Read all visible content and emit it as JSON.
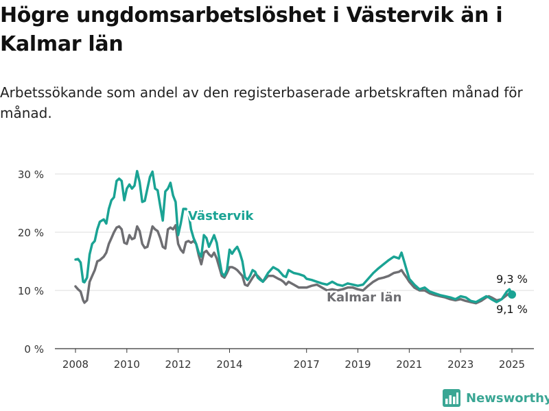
{
  "title": "Högre ungdomsarbetslöshet i Västervik än i Kalmar län",
  "subtitle": "Arbetssökande som andel av den registerbaserade arbetskraften månad för månad.",
  "brand": {
    "name": "Newsworthy",
    "color": "#3aa694"
  },
  "colors": {
    "vastervik": "#1aa394",
    "kalmar": "#6e6e72",
    "grid": "#dcdcdc",
    "axis": "#333333"
  },
  "chart_data": {
    "type": "line",
    "title": "Högre ungdomsarbetslöshet i Västervik än i Kalmar län",
    "xlabel": "",
    "ylabel": "",
    "ylim": [
      0,
      30
    ],
    "xlim": [
      2008.0,
      2025.5
    ],
    "grid": "horizontal",
    "y_ticks": [
      0,
      10,
      20,
      30
    ],
    "y_tick_labels": [
      "0 %",
      "10 %",
      "20 %",
      "30 %"
    ],
    "x_ticks": [
      2008,
      2010,
      2012,
      2014,
      2017,
      2019,
      2021,
      2023,
      2025
    ],
    "x_tick_labels": [
      "2008",
      "2010",
      "2012",
      "2014",
      "2017",
      "2019",
      "2021",
      "2023",
      "2025"
    ],
    "series": [
      {
        "name": "Västervik",
        "color": "#1aa394",
        "label": "Västervik",
        "end_label": "9,3 %",
        "end_value": 9.3,
        "x": [
          2008.0,
          2008.1,
          2008.2,
          2008.3,
          2008.35,
          2008.45,
          2008.55,
          2008.65,
          2008.75,
          2008.85,
          2008.95,
          2009.1,
          2009.2,
          2009.3,
          2009.4,
          2009.5,
          2009.6,
          2009.7,
          2009.8,
          2009.9,
          2010.0,
          2010.1,
          2010.2,
          2010.3,
          2010.4,
          2010.5,
          2010.6,
          2010.7,
          2010.8,
          2010.9,
          2011.0,
          2011.1,
          2011.2,
          2011.3,
          2011.4,
          2011.5,
          2011.6,
          2011.7,
          2011.8,
          2011.9,
          2012.0,
          2012.1,
          2012.2,
          2012.3,
          2012.4,
          2012.5,
          2012.6,
          2012.7,
          2012.8,
          2012.9,
          2013.0,
          2013.1,
          2013.2,
          2013.3,
          2013.4,
          2013.5,
          2013.6,
          2013.7,
          2013.8,
          2013.9,
          2014.0,
          2014.1,
          2014.2,
          2014.3,
          2014.4,
          2014.5,
          2014.6,
          2014.7,
          2014.8,
          2014.9,
          2015.0,
          2015.1,
          2015.2,
          2015.3,
          2015.5,
          2015.7,
          2015.9,
          2016.0,
          2016.1,
          2016.2,
          2016.3,
          2016.5,
          2016.7,
          2016.9,
          2017.0,
          2017.2,
          2017.4,
          2017.6,
          2017.8,
          2018.0,
          2018.2,
          2018.4,
          2018.6,
          2018.8,
          2019.0,
          2019.2,
          2019.4,
          2019.6,
          2019.8,
          2020.0,
          2020.2,
          2020.4,
          2020.6,
          2020.7,
          2020.8,
          2020.9,
          2021.0,
          2021.2,
          2021.4,
          2021.6,
          2021.8,
          2022.0,
          2022.2,
          2022.4,
          2022.6,
          2022.8,
          2023.0,
          2023.2,
          2023.4,
          2023.6,
          2023.8,
          2024.0,
          2024.1,
          2024.2,
          2024.4,
          2024.6,
          2024.8,
          2024.9,
          2025.0
        ],
        "values": [
          15.3,
          15.4,
          14.8,
          11.5,
          11.4,
          12.2,
          16.2,
          18.0,
          18.5,
          20.5,
          21.8,
          22.2,
          21.5,
          24.0,
          25.5,
          26.0,
          28.8,
          29.2,
          28.8,
          25.5,
          27.5,
          28.2,
          27.5,
          28.0,
          30.5,
          28.6,
          25.2,
          25.4,
          27.5,
          29.5,
          30.4,
          27.5,
          27.2,
          24.5,
          22.0,
          27.0,
          27.5,
          28.5,
          26.3,
          25.2,
          19.5,
          21.5,
          24.0,
          24.0,
          23.5,
          20.5,
          19.0,
          18.0,
          16.5,
          15.8,
          19.5,
          19.0,
          17.5,
          18.5,
          19.5,
          18.2,
          15.5,
          13.0,
          12.5,
          13.5,
          17.0,
          16.3,
          17.0,
          17.5,
          16.5,
          15.0,
          12.3,
          11.8,
          12.5,
          13.5,
          13.2,
          12.2,
          11.8,
          11.5,
          13.0,
          14.0,
          13.5,
          13.0,
          12.5,
          12.3,
          13.5,
          13.0,
          12.8,
          12.5,
          12.0,
          11.8,
          11.5,
          11.2,
          11.0,
          11.5,
          11.0,
          10.8,
          11.2,
          11.0,
          10.8,
          11.0,
          12.0,
          13.0,
          13.8,
          14.5,
          15.2,
          15.8,
          15.5,
          16.5,
          15.0,
          13.5,
          12.0,
          11.0,
          10.2,
          10.5,
          9.8,
          9.5,
          9.2,
          9.0,
          8.8,
          8.5,
          9.0,
          8.8,
          8.2,
          8.0,
          8.5,
          9.0,
          8.8,
          8.5,
          8.0,
          8.5,
          9.8,
          10.2,
          9.3
        ]
      },
      {
        "name": "Kalmar län",
        "color": "#6e6e72",
        "label": "Kalmar län",
        "end_label": "9,1 %",
        "end_value": 9.1,
        "x": [
          2008.0,
          2008.1,
          2008.2,
          2008.3,
          2008.35,
          2008.45,
          2008.55,
          2008.65,
          2008.75,
          2008.85,
          2008.95,
          2009.1,
          2009.2,
          2009.3,
          2009.4,
          2009.5,
          2009.6,
          2009.7,
          2009.8,
          2009.9,
          2010.0,
          2010.1,
          2010.2,
          2010.3,
          2010.4,
          2010.5,
          2010.6,
          2010.7,
          2010.8,
          2010.9,
          2011.0,
          2011.1,
          2011.2,
          2011.3,
          2011.4,
          2011.5,
          2011.6,
          2011.7,
          2011.8,
          2011.9,
          2012.0,
          2012.1,
          2012.2,
          2012.3,
          2012.4,
          2012.5,
          2012.6,
          2012.7,
          2012.8,
          2012.9,
          2013.0,
          2013.1,
          2013.2,
          2013.3,
          2013.4,
          2013.5,
          2013.6,
          2013.7,
          2013.8,
          2013.9,
          2014.0,
          2014.1,
          2014.2,
          2014.3,
          2014.4,
          2014.5,
          2014.6,
          2014.7,
          2014.8,
          2014.9,
          2015.0,
          2015.1,
          2015.2,
          2015.3,
          2015.5,
          2015.7,
          2015.9,
          2016.0,
          2016.1,
          2016.2,
          2016.3,
          2016.5,
          2016.7,
          2016.9,
          2017.0,
          2017.2,
          2017.4,
          2017.6,
          2017.8,
          2018.0,
          2018.2,
          2018.4,
          2018.6,
          2018.8,
          2019.0,
          2019.2,
          2019.4,
          2019.6,
          2019.8,
          2020.0,
          2020.2,
          2020.4,
          2020.6,
          2020.7,
          2020.8,
          2020.9,
          2021.0,
          2021.2,
          2021.4,
          2021.6,
          2021.8,
          2022.0,
          2022.2,
          2022.4,
          2022.6,
          2022.8,
          2023.0,
          2023.2,
          2023.4,
          2023.6,
          2023.8,
          2024.0,
          2024.1,
          2024.2,
          2024.4,
          2024.6,
          2024.8,
          2024.9,
          2025.0
        ],
        "values": [
          10.7,
          10.2,
          9.8,
          8.3,
          7.9,
          8.3,
          11.5,
          12.5,
          13.5,
          15.0,
          15.2,
          15.8,
          16.5,
          18.0,
          19.0,
          20.0,
          20.8,
          21.0,
          20.5,
          18.2,
          18.0,
          19.5,
          18.8,
          19.0,
          21.0,
          20.2,
          18.0,
          17.3,
          17.5,
          19.2,
          21.0,
          20.5,
          20.2,
          19.0,
          17.5,
          17.2,
          20.5,
          20.8,
          20.5,
          21.2,
          18.0,
          17.0,
          16.5,
          18.3,
          18.5,
          18.2,
          18.5,
          18.0,
          16.0,
          14.5,
          16.5,
          16.8,
          16.2,
          15.8,
          16.5,
          15.5,
          14.0,
          12.5,
          12.2,
          13.0,
          14.0,
          14.0,
          13.8,
          13.5,
          13.0,
          12.5,
          11.0,
          10.8,
          11.5,
          12.2,
          12.8,
          12.5,
          12.0,
          11.5,
          12.5,
          12.5,
          12.0,
          11.8,
          11.5,
          11.0,
          11.5,
          11.0,
          10.5,
          10.5,
          10.5,
          10.8,
          11.0,
          10.5,
          10.0,
          10.2,
          10.0,
          10.2,
          10.5,
          10.5,
          10.2,
          10.0,
          10.8,
          11.5,
          12.0,
          12.2,
          12.5,
          13.0,
          13.2,
          13.5,
          12.8,
          12.2,
          11.5,
          10.5,
          10.0,
          10.0,
          9.5,
          9.2,
          9.0,
          8.8,
          8.5,
          8.3,
          8.5,
          8.2,
          8.0,
          7.8,
          8.2,
          8.8,
          9.0,
          8.8,
          8.3,
          8.5,
          9.2,
          9.5,
          9.1
        ]
      }
    ]
  }
}
